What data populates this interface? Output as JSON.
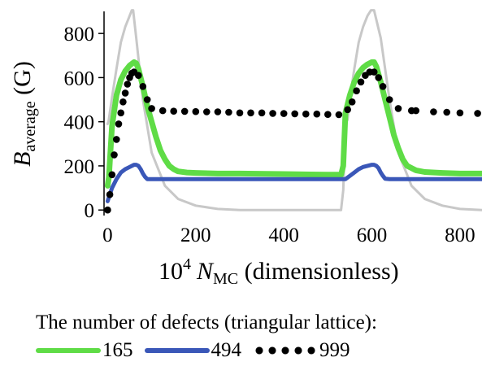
{
  "chart_data": {
    "type": "line",
    "title": "",
    "xlabel_prefix": "10",
    "xlabel_exponent": "4",
    "xlabel_symbol": "N",
    "xlabel_subscript": "MC",
    "xlabel_suffix": " (dimensionless)",
    "ylabel_symbol": "B",
    "ylabel_subscript": "average",
    "ylabel_suffix": " (G)",
    "xlim": [
      -10,
      850
    ],
    "ylim": [
      -25,
      900
    ],
    "xticks": [
      0,
      200,
      400,
      600,
      800
    ],
    "yticks": [
      0,
      200,
      400,
      600,
      800
    ],
    "grid": false,
    "legend": {
      "title": "The number of defects (triangular lattice):",
      "placement": "bottom"
    },
    "series": [
      {
        "name": "",
        "style": "line",
        "color": "#c8c8c8",
        "x": [
          0,
          2,
          10,
          20,
          30,
          40,
          50,
          55,
          58,
          65,
          80,
          100,
          130,
          160,
          200,
          250,
          300,
          350,
          400,
          450,
          500,
          520,
          530,
          535,
          540,
          545,
          550,
          560,
          570,
          580,
          590,
          598,
          605,
          620,
          640,
          660,
          690,
          720,
          760,
          800,
          850
        ],
        "y": [
          390,
          400,
          510,
          640,
          760,
          830,
          880,
          905,
          905,
          780,
          500,
          260,
          110,
          50,
          20,
          5,
          0,
          0,
          0,
          0,
          0,
          0,
          0,
          90,
          390,
          410,
          500,
          640,
          760,
          830,
          880,
          905,
          905,
          780,
          500,
          260,
          110,
          50,
          20,
          5,
          0
        ]
      },
      {
        "name": "165",
        "style": "line",
        "color": "#5fdc46",
        "x": [
          0,
          3,
          10,
          20,
          30,
          40,
          50,
          60,
          65,
          70,
          80,
          90,
          100,
          110,
          120,
          130,
          140,
          150,
          160,
          180,
          200,
          250,
          300,
          400,
          500,
          530,
          535,
          540,
          550,
          560,
          570,
          580,
          590,
          600,
          605,
          610,
          620,
          630,
          640,
          650,
          660,
          670,
          680,
          700,
          720,
          760,
          800,
          850
        ],
        "y": [
          110,
          150,
          380,
          520,
          590,
          630,
          655,
          670,
          665,
          640,
          560,
          470,
          400,
          330,
          270,
          230,
          200,
          185,
          175,
          170,
          168,
          165,
          165,
          163,
          160,
          160,
          200,
          440,
          520,
          580,
          620,
          645,
          660,
          670,
          670,
          650,
          580,
          500,
          420,
          340,
          280,
          230,
          200,
          180,
          172,
          168,
          165,
          165
        ]
      },
      {
        "name": "494",
        "style": "line",
        "color": "#3a57b8",
        "x": [
          0,
          10,
          20,
          30,
          40,
          50,
          60,
          65,
          70,
          75,
          80,
          85,
          90,
          100,
          200,
          300,
          400,
          500,
          540,
          550,
          560,
          570,
          580,
          590,
          600,
          605,
          610,
          615,
          620,
          625,
          630,
          640,
          700,
          800,
          850
        ],
        "y": [
          40,
          100,
          140,
          170,
          185,
          195,
          205,
          205,
          200,
          185,
          165,
          150,
          140,
          140,
          140,
          140,
          140,
          140,
          140,
          155,
          170,
          185,
          195,
          200,
          205,
          205,
          200,
          190,
          170,
          155,
          142,
          140,
          140,
          140,
          140
        ]
      },
      {
        "name": "999",
        "style": "dots",
        "color": "#000000",
        "x": [
          0,
          5,
          10,
          15,
          20,
          25,
          30,
          35,
          40,
          45,
          50,
          55,
          60,
          70,
          80,
          90,
          100,
          125,
          150,
          175,
          200,
          225,
          250,
          275,
          300,
          325,
          350,
          375,
          400,
          425,
          450,
          475,
          500,
          525,
          545,
          555,
          565,
          575,
          585,
          595,
          605,
          615,
          625,
          640,
          660,
          690,
          700,
          740,
          770,
          800,
          840
        ],
        "y": [
          0,
          70,
          160,
          250,
          320,
          390,
          440,
          490,
          530,
          570,
          600,
          620,
          625,
          610,
          560,
          500,
          460,
          450,
          448,
          447,
          446,
          445,
          445,
          443,
          440,
          440,
          440,
          438,
          437,
          436,
          435,
          435,
          433,
          432,
          455,
          490,
          540,
          580,
          610,
          625,
          625,
          600,
          560,
          500,
          460,
          450,
          450,
          445,
          443,
          440,
          438
        ]
      }
    ]
  }
}
